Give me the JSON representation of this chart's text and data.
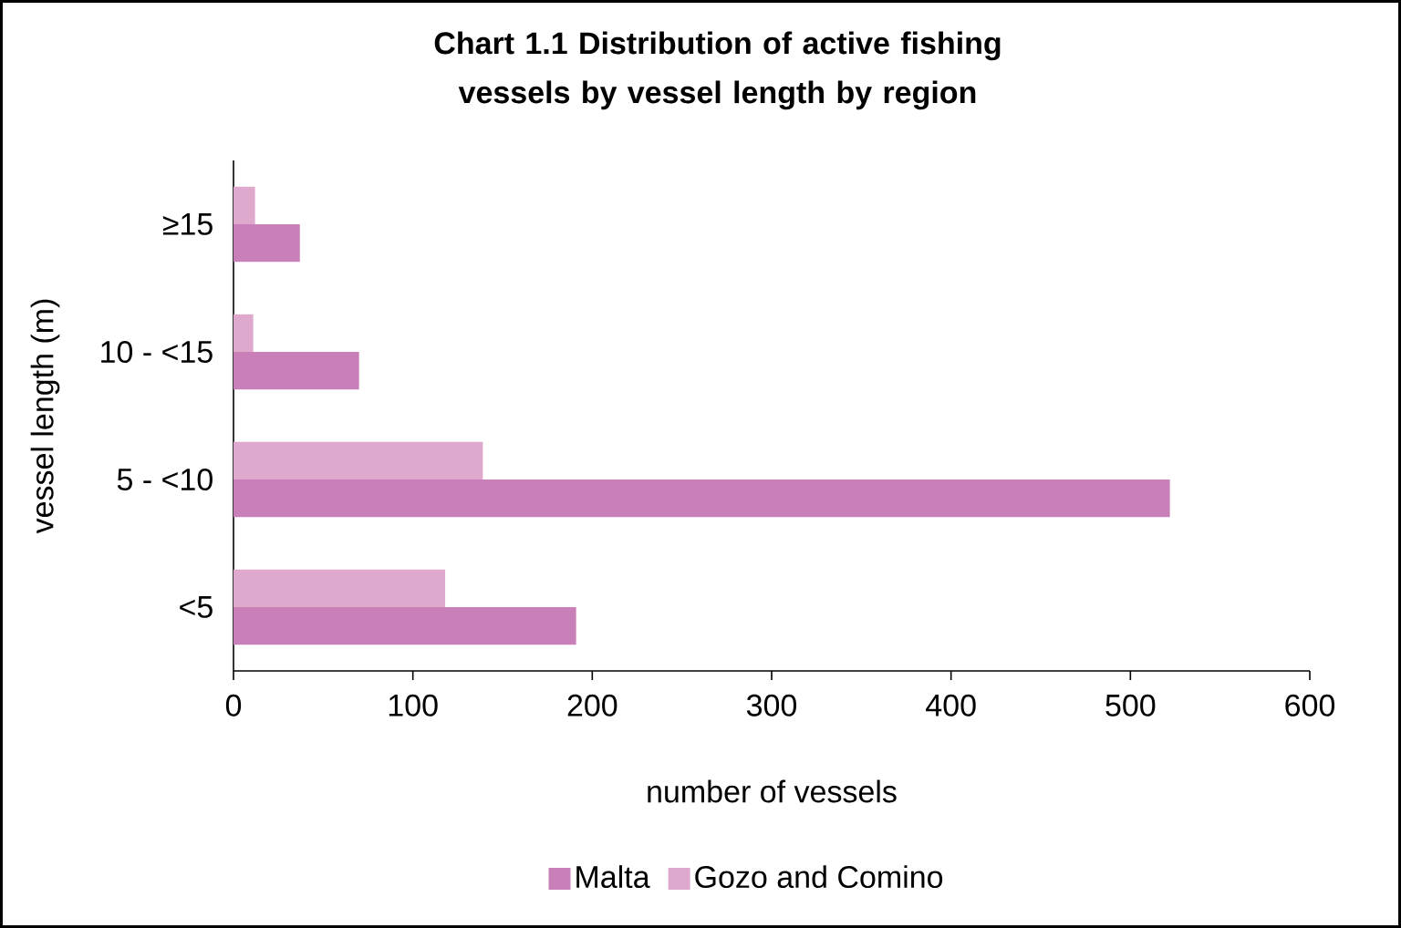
{
  "chart_data": {
    "type": "bar",
    "orientation": "horizontal",
    "title": "Chart 1.1  Distribution of active fishing vessels by vessel length by region",
    "xlabel": "number of vessels",
    "ylabel": "vessel length (m)",
    "categories": [
      "≥15",
      "10 - <15",
      "5 - <10",
      "<5"
    ],
    "series": [
      {
        "name": "Malta",
        "color": "#c980b8",
        "values": [
          37,
          70,
          522,
          191
        ]
      },
      {
        "name": "Gozo and Comino",
        "color": "#dfa8cd",
        "values": [
          12,
          11,
          139,
          118
        ]
      }
    ],
    "xlim": [
      0,
      600
    ],
    "xticks": [
      0,
      100,
      200,
      300,
      400,
      500,
      600
    ],
    "legend": "bottom"
  }
}
